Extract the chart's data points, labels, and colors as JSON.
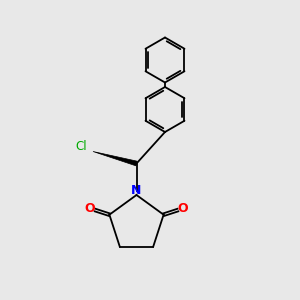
{
  "background_color": "#e8e8e8",
  "bond_color": "#000000",
  "atom_colors": {
    "N": "#0000ff",
    "O": "#ff0000",
    "Cl": "#00aa00"
  },
  "lw": 1.3,
  "xlim": [
    0,
    10
  ],
  "ylim": [
    0,
    10
  ],
  "figsize": [
    3.0,
    3.0
  ],
  "dpi": 100
}
